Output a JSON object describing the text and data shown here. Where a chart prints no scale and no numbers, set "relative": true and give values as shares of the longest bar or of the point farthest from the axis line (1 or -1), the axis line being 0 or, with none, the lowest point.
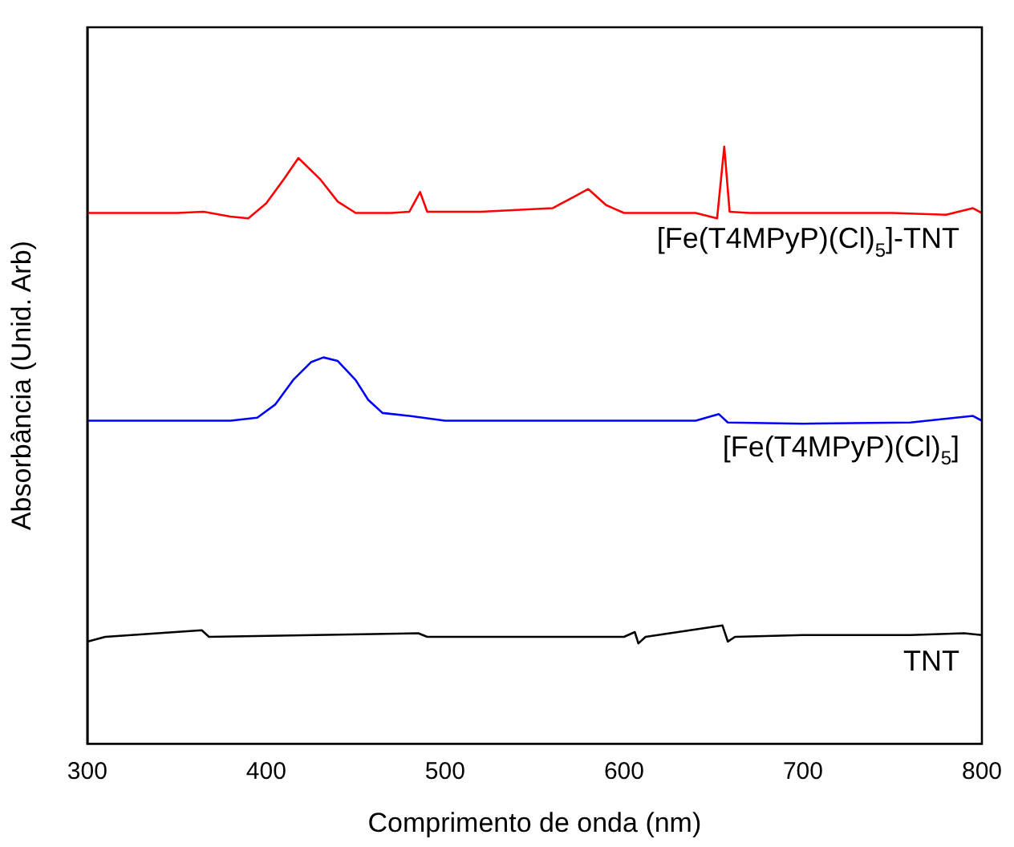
{
  "chart_data": {
    "type": "line",
    "relative": true,
    "xlabel": "Comprimento de onda (nm)",
    "ylabel": "Absorbância (Unid. Arb)",
    "xlim": [
      300,
      800
    ],
    "xticks": [
      300,
      400,
      500,
      600,
      700,
      800
    ],
    "grid": false,
    "legend": false,
    "marker": "none",
    "line_style": "solid",
    "series": [
      {
        "name": "[Fe(T4MPyP)(Cl)$_{5}$]-TNT",
        "color": "#ff0000",
        "x": [
          300,
          350,
          365,
          380,
          390,
          400,
          410,
          418,
          430,
          440,
          450,
          470,
          480,
          486,
          490,
          520,
          560,
          572,
          580,
          590,
          600,
          640,
          652,
          656,
          659,
          670,
          700,
          750,
          780,
          795,
          800
        ],
        "values": [
          0.889,
          0.889,
          0.891,
          0.883,
          0.88,
          0.905,
          0.946,
          0.981,
          0.946,
          0.908,
          0.889,
          0.889,
          0.891,
          0.924,
          0.891,
          0.891,
          0.897,
          0.916,
          0.929,
          0.902,
          0.889,
          0.889,
          0.88,
          1,
          0.891,
          0.889,
          0.889,
          0.889,
          0.886,
          0.897,
          0.889
        ]
      },
      {
        "name": "[Fe(T4MPyP)(Cl)$_{5}$]",
        "color": "#0000ff",
        "x": [
          300,
          380,
          395,
          405,
          415,
          425,
          432,
          440,
          450,
          457,
          465,
          480,
          500,
          600,
          640,
          653,
          658,
          700,
          760,
          795,
          800
        ],
        "values": [
          0.541,
          0.541,
          0.546,
          0.568,
          0.609,
          0.639,
          0.647,
          0.641,
          0.609,
          0.576,
          0.554,
          0.549,
          0.541,
          0.541,
          0.541,
          0.552,
          0.538,
          0.536,
          0.538,
          0.549,
          0.541
        ]
      },
      {
        "name": "TNT",
        "color": "#000000",
        "x": [
          300,
          310,
          364,
          368,
          485,
          490,
          600,
          606,
          608,
          612,
          655,
          658,
          662,
          700,
          760,
          790,
          800
        ],
        "values": [
          0.171,
          0.179,
          0.19,
          0.179,
          0.185,
          0.179,
          0.179,
          0.187,
          0.168,
          0.179,
          0.198,
          0.171,
          0.179,
          0.182,
          0.182,
          0.185,
          0.182
        ]
      }
    ]
  }
}
